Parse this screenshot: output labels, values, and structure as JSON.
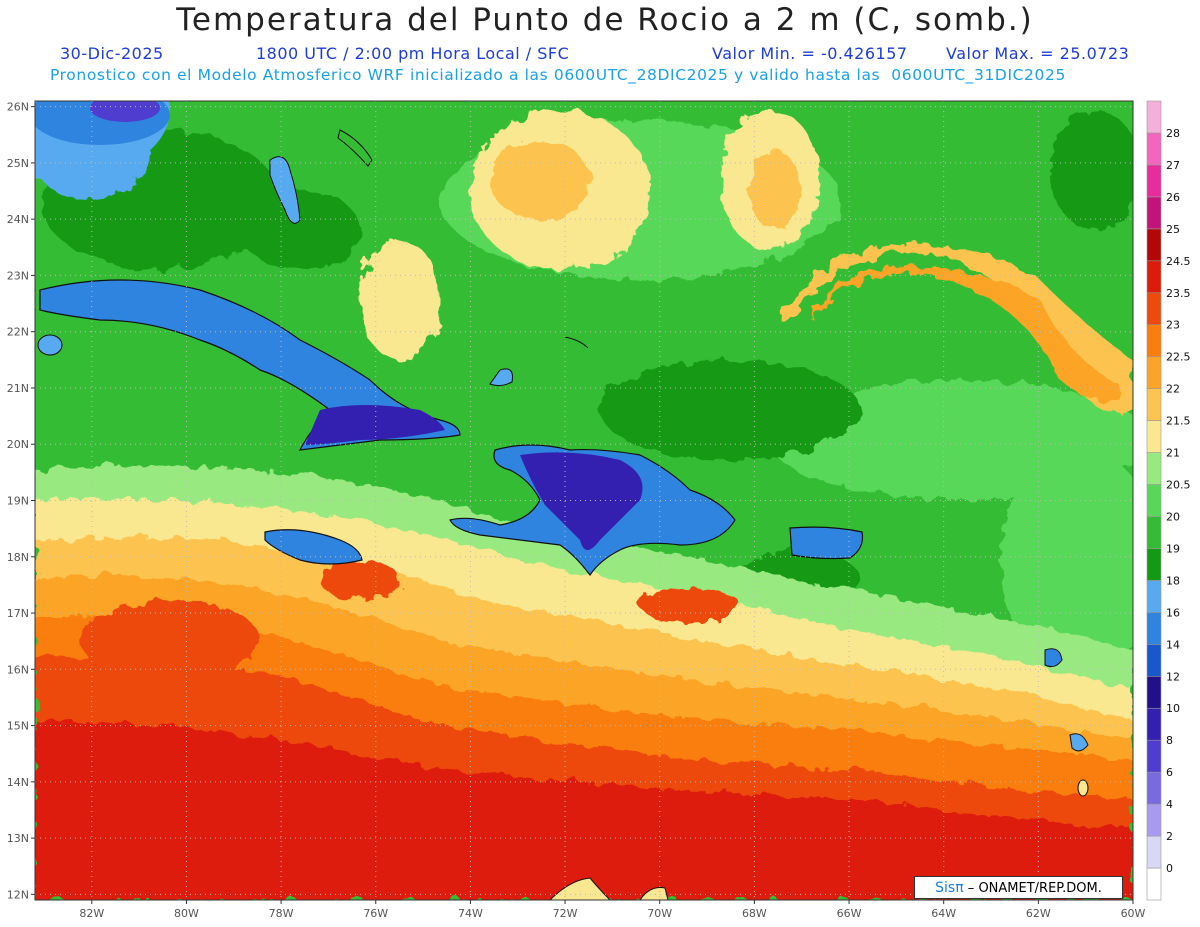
{
  "header": {
    "title": "Temperatura del Punto de Rocio a 2 m (C, somb.)",
    "date": "30-Dic-2025",
    "time": "1800 UTC / 2:00 pm Hora Local / SFC",
    "min_label": "Valor Min. = -0.426157",
    "max_label": "Valor Max. = 25.0723",
    "model_info": "Pronostico con el Modelo Atmosferico WRF inicializado a las 0600UTC_28DIC2025 y valido hasta las  0600UTC_31DIC2025"
  },
  "map": {
    "lon_range": [
      -83.2,
      -60
    ],
    "lat_range": [
      11.9,
      26.1
    ],
    "lat_labels": [
      "26N",
      "25N",
      "24N",
      "23N",
      "22N",
      "21N",
      "20N",
      "19N",
      "18N",
      "17N",
      "16N",
      "15N",
      "14N",
      "13N",
      "12N"
    ],
    "lon_labels": [
      "82W",
      "80W",
      "78W",
      "76W",
      "74W",
      "72W",
      "70W",
      "68W",
      "66W",
      "64W",
      "62W",
      "60W"
    ],
    "credit": "ONAMET/REP.DOM.",
    "credit_logo": "Sisπ"
  },
  "colorbar": {
    "levels": [
      "0",
      "2",
      "4",
      "6",
      "8",
      "10",
      "12",
      "14",
      "16",
      "18",
      "19",
      "20",
      "20.5",
      "21",
      "21.5",
      "22",
      "22.5",
      "23",
      "23.5",
      "24.5",
      "25",
      "26",
      "27",
      "28"
    ],
    "colors": [
      "#ffffff",
      "#d8d8f4",
      "#a89af0",
      "#7a6ae0",
      "#4f3dd0",
      "#3420b0",
      "#22108a",
      "#1858cc",
      "#2f84e0",
      "#58aaf0",
      "#129a12",
      "#34bc34",
      "#58d858",
      "#98ea80",
      "#fae890",
      "#fcc450",
      "#fca428",
      "#fa7e0c",
      "#ee4a0c",
      "#de1a0a",
      "#b40606",
      "#c21478",
      "#e82c9c",
      "#f466be",
      "#f4b0d8"
    ]
  }
}
